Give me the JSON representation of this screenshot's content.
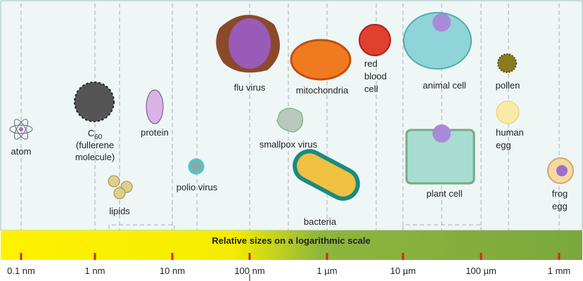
{
  "items": [
    {
      "lines": [
        "atom"
      ]
    },
    {
      "formula": {
        "base": "C",
        "sub": "60"
      },
      "lines": [
        "(fullerene",
        "molecule)"
      ]
    },
    {
      "lines": [
        "protein"
      ]
    },
    {
      "lines": [
        "lipids"
      ]
    },
    {
      "lines": [
        "polio virus"
      ]
    },
    {
      "lines": [
        "flu virus"
      ]
    },
    {
      "lines": [
        "smallpox virus"
      ]
    },
    {
      "lines": [
        "bacteria"
      ]
    },
    {
      "lines": [
        "mitochondria"
      ]
    },
    {
      "lines": [
        "red",
        "blood",
        "cell"
      ]
    },
    {
      "lines": [
        "animal cell"
      ]
    },
    {
      "lines": [
        "plant cell"
      ]
    },
    {
      "lines": [
        "pollen"
      ]
    },
    {
      "lines": [
        "human",
        "egg"
      ]
    },
    {
      "lines": [
        "frog",
        "egg"
      ]
    }
  ],
  "scale": {
    "title": "Relative sizes on a logarithmic scale",
    "ticks": [
      "0.1 nm",
      "1 nm",
      "10 nm",
      "100 nm",
      "1 µm",
      "10 µm",
      "100 µm",
      "1 mm"
    ]
  }
}
